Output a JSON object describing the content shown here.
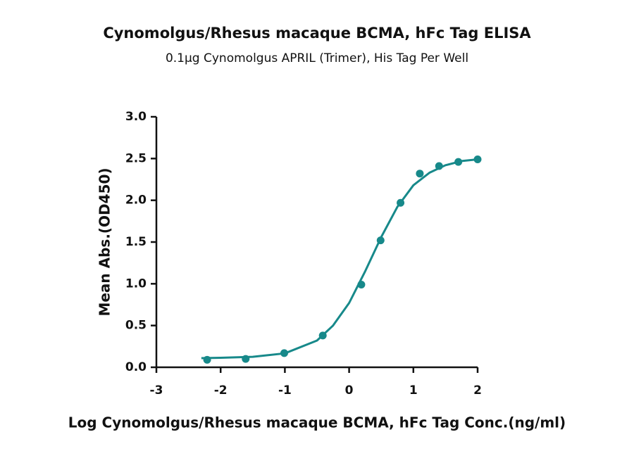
{
  "chart_data": {
    "type": "scatter",
    "title": "Cynomolgus/Rhesus macaque BCMA, hFc Tag ELISA",
    "subtitle": "0.1μg Cynomolgus APRIL (Trimer), His Tag Per Well",
    "x_label": "Log Cynomolgus/Rhesus macaque BCMA, hFc Tag Conc.(ng/ml)",
    "y_label": "Mean Abs.(OD450)",
    "color": "#17898a",
    "x": [
      -2.21,
      -1.61,
      -1.01,
      -0.41,
      0.19,
      0.49,
      0.8,
      1.1,
      1.4,
      1.7,
      2.0
    ],
    "values": [
      0.09,
      0.1,
      0.17,
      0.38,
      0.99,
      1.52,
      1.97,
      2.32,
      2.41,
      2.46,
      2.49
    ],
    "fit": {
      "x": [
        -2.3,
        -2,
        -1.5,
        -1,
        -0.5,
        -0.25,
        0,
        0.25,
        0.5,
        0.75,
        1,
        1.25,
        1.5,
        1.75,
        2
      ],
      "values": [
        0.11,
        0.114,
        0.125,
        0.167,
        0.32,
        0.5,
        0.77,
        1.15,
        1.56,
        1.92,
        2.18,
        2.33,
        2.42,
        2.47,
        2.49
      ]
    },
    "xlim": [
      -3,
      2
    ],
    "ylim": [
      0,
      3
    ],
    "xticks": [
      -3,
      -2,
      -1,
      0,
      1,
      2
    ],
    "yticks": [
      {
        "value": 0,
        "label": "0.0"
      },
      0.5,
      {
        "value": 1,
        "label": "1.0"
      },
      1.5,
      {
        "value": 2,
        "label": "2.0"
      },
      2.5,
      {
        "value": 3,
        "label": "3.0"
      }
    ]
  }
}
